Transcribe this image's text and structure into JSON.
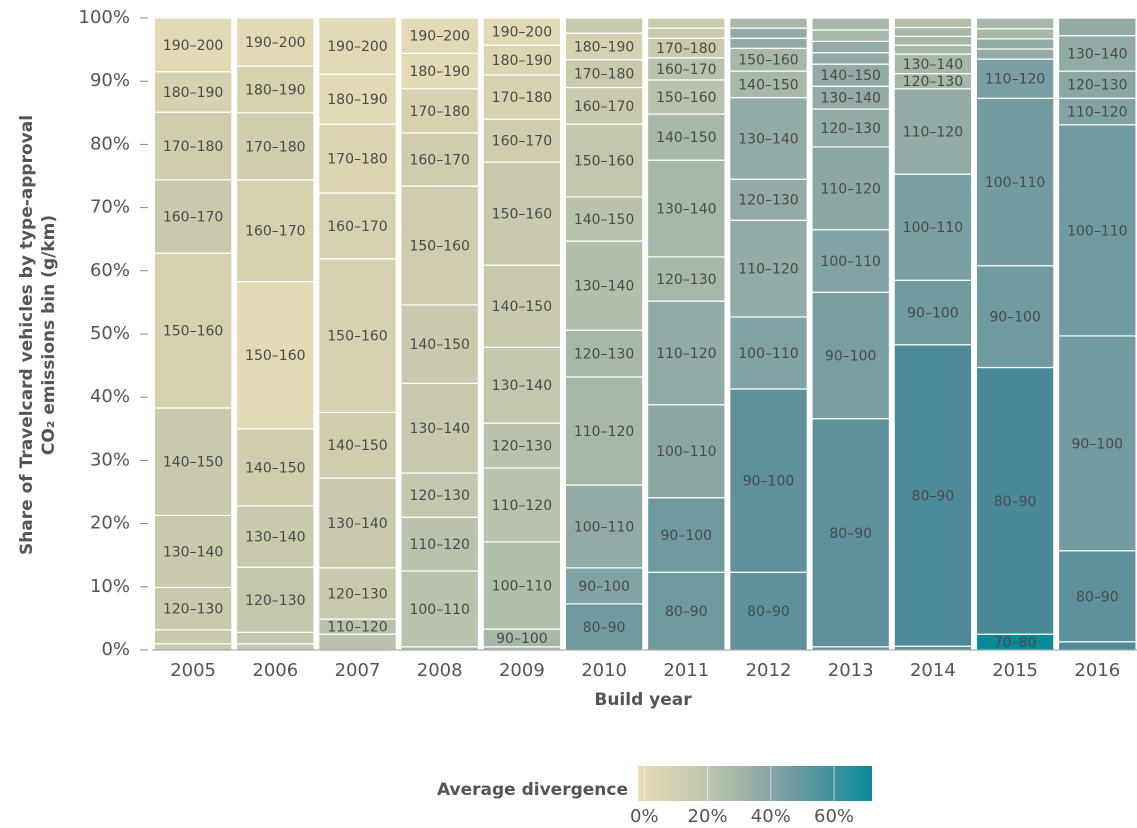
{
  "chart_data": {
    "type": "stacked-bar-100",
    "ylabel": [
      "Share of Travelcard vehicles by type-approval",
      "CO₂ emissions bin (g/km)"
    ],
    "xlabel": "Build year",
    "categories": [
      "2005",
      "2006",
      "2007",
      "2008",
      "2009",
      "2010",
      "2011",
      "2012",
      "2013",
      "2014",
      "2015",
      "2016"
    ],
    "ylim": [
      0,
      100
    ],
    "yticks": [
      {
        "value": 0,
        "label": "0%"
      },
      {
        "value": 10,
        "label": "10%"
      },
      {
        "value": 20,
        "label": "20%"
      },
      {
        "value": 30,
        "label": "30%"
      },
      {
        "value": 40,
        "label": "40%"
      },
      {
        "value": 50,
        "label": "50%"
      },
      {
        "value": 60,
        "label": "60%"
      },
      {
        "value": 70,
        "label": "70%"
      },
      {
        "value": 80,
        "label": "80%"
      },
      {
        "value": 90,
        "label": "90%"
      },
      {
        "value": 100,
        "label": "100%"
      }
    ],
    "stacks": [
      {
        "labels": [
          null,
          null,
          "120–130",
          "130–140",
          "140–150",
          "150–160",
          "160–170",
          "170–180",
          "180–190",
          "190–200"
        ],
        "values": [
          1.0,
          2.2,
          6.7,
          11.4,
          17.0,
          24.5,
          11.6,
          10.7,
          6.4,
          8.5
        ],
        "colors": [
          "#c9caad",
          "#c9caad",
          "#c9caad",
          "#c9caad",
          "#c9caad",
          "#d6d2b0",
          "#c9caad",
          "#cfcdae",
          "#d6d2b0",
          "#e2d9b5"
        ]
      },
      {
        "labels": [
          null,
          null,
          "120–130",
          "130–140",
          "140–150",
          "150–160",
          "160–170",
          "170–180",
          "180–190",
          "190–200"
        ],
        "values": [
          1.0,
          1.8,
          10.3,
          9.7,
          12.2,
          23.3,
          16.1,
          10.6,
          7.4,
          7.6
        ],
        "colors": [
          "#c4c7ad",
          "#c4c7ad",
          "#c4c7ad",
          "#c9caad",
          "#cfcdae",
          "#e2d9b5",
          "#d6d2b0",
          "#cfcdae",
          "#d6d2b0",
          "#e2d9b5"
        ]
      },
      {
        "labels": [
          null,
          "110–120",
          "120–130",
          "130–140",
          "140–150",
          "150–160",
          "160–170",
          "170–180",
          "180–190",
          "190–200"
        ],
        "values": [
          2.5,
          2.4,
          8.1,
          14.2,
          10.4,
          24.3,
          10.4,
          10.9,
          7.9,
          9.0
        ],
        "colors": [
          "#b9c2ac",
          "#b9c2ac",
          "#c9caad",
          "#c9caad",
          "#cfcdae",
          "#d6d2b0",
          "#d6d2b0",
          "#dcd5b2",
          "#e2d9b5",
          "#e2d9b5"
        ]
      },
      {
        "labels": [
          null,
          "100–110",
          "110–120",
          "120–130",
          "130–140",
          "140–150",
          "150–160",
          "160–170",
          "170–180",
          "180–190",
          "190–200"
        ],
        "values": [
          0.5,
          12.0,
          8.5,
          7.0,
          14.2,
          12.4,
          18.8,
          8.4,
          7.0,
          5.6,
          5.6
        ],
        "colors": [
          "#a7b8a9",
          "#b9c2ac",
          "#b9c2ac",
          "#c4c7ad",
          "#c9caad",
          "#c9caad",
          "#cfcdae",
          "#cfcdae",
          "#d6d2b0",
          "#e2d9b5",
          "#e2d9b5"
        ]
      },
      {
        "labels": [
          null,
          "90–100",
          "100–110",
          "110–120",
          "120–130",
          "130–140",
          "140–150",
          "150–160",
          "160–170",
          "170–180",
          "180–190",
          "190–200"
        ],
        "values": [
          0.5,
          2.8,
          13.8,
          11.7,
          7.1,
          12.0,
          13.0,
          16.3,
          6.8,
          7.0,
          4.7,
          4.3
        ],
        "colors": [
          "#a7b8a9",
          "#a7b8a9",
          "#b2bfab",
          "#b9c2ac",
          "#b9c2ac",
          "#c4c7ad",
          "#c9caad",
          "#c9caad",
          "#cfcdae",
          "#d6d2b0",
          "#dcd5b2",
          "#e2d9b5"
        ]
      },
      {
        "labels": [
          "80–90",
          "90–100",
          "100–110",
          "110–120",
          "120–130",
          "130–140",
          "140–150",
          "150–160",
          "160–170",
          "170–180",
          "180–190",
          null
        ],
        "values": [
          7.3,
          5.7,
          13.1,
          17.1,
          7.4,
          14.1,
          7.0,
          11.5,
          5.8,
          4.4,
          4.2,
          2.4
        ],
        "colors": [
          "#6f9aa0",
          "#82a3a3",
          "#93aba6",
          "#a7b8a9",
          "#a7b8a9",
          "#b2bfab",
          "#b9c2ac",
          "#c4c7ad",
          "#c9caad",
          "#c9caad",
          "#d6d2b0",
          "#c9caad"
        ]
      },
      {
        "labels": [
          "80–90",
          "90–100",
          "100–110",
          "110–120",
          "120–130",
          "130–140",
          "140–150",
          "150–160",
          "160–170",
          "170–180",
          null,
          null
        ],
        "values": [
          12.3,
          11.8,
          14.7,
          16.4,
          7.0,
          15.3,
          7.3,
          5.4,
          3.5,
          3.1,
          1.6,
          1.6
        ],
        "colors": [
          "#6f9aa0",
          "#6f9aa0",
          "#8aa7a4",
          "#93aba6",
          "#a7b8a9",
          "#a7b8a9",
          "#a7b8a9",
          "#b9c2ac",
          "#b9c2ac",
          "#c9caad",
          "#c9caad",
          "#c9caad"
        ]
      },
      {
        "labels": [
          "80–90",
          "90–100",
          "100–110",
          "110–120",
          "120–130",
          "130–140",
          "140–150",
          "150–160",
          null,
          null,
          null
        ],
        "values": [
          12.3,
          29.0,
          11.4,
          15.3,
          6.5,
          12.9,
          4.2,
          3.6,
          1.6,
          1.6,
          1.6
        ],
        "colors": [
          "#5e919c",
          "#5e919c",
          "#82a3a3",
          "#93aba6",
          "#93aba6",
          "#93aba6",
          "#a7b8a9",
          "#a7b8a9",
          "#93aba6",
          "#93aba6",
          "#a7b8a9"
        ]
      },
      {
        "labels": [
          null,
          "80–90",
          "90–100",
          "100–110",
          "110–120",
          "120–130",
          "130–140",
          "140–150",
          null,
          null,
          null,
          null
        ],
        "values": [
          0.5,
          36.1,
          20.0,
          9.9,
          13.1,
          6.0,
          3.6,
          3.5,
          1.8,
          1.8,
          1.8,
          1.9
        ],
        "colors": [
          "#5e919c",
          "#5e919c",
          "#7a9fa2",
          "#82a3a3",
          "#8aa7a4",
          "#93aba6",
          "#93aba6",
          "#93aba6",
          "#93aba6",
          "#93aba6",
          "#a7b8a9",
          "#a7b8a9"
        ]
      },
      {
        "labels": [
          null,
          "80–90",
          "90–100",
          "100–110",
          "110–120",
          "120–130",
          "130–140",
          null,
          null,
          null,
          null
        ],
        "values": [
          0.6,
          47.7,
          10.2,
          16.8,
          13.5,
          2.4,
          3.1,
          1.4,
          1.4,
          1.4,
          1.5
        ],
        "colors": [
          "#5e919c",
          "#4d8b9a",
          "#6f9aa0",
          "#7a9fa2",
          "#93aba6",
          "#a7b8a9",
          "#a7b8a9",
          "#a7b8a9",
          "#a7b8a9",
          "#a7b8a9",
          "#b2bfab"
        ]
      },
      {
        "labels": [
          "70–80",
          "80–90",
          "90–100",
          "100–110",
          "110–120",
          null,
          null,
          null,
          null
        ],
        "values": [
          2.5,
          42.2,
          16.1,
          26.5,
          6.2,
          1.6,
          1.6,
          1.6,
          1.7
        ],
        "colors": [
          "#0b8a9a",
          "#4a8a98",
          "#6f9aa0",
          "#739ca1",
          "#7a9fa2",
          "#93aba6",
          "#93aba6",
          "#a7b8a9",
          "#a7b8a9"
        ]
      },
      {
        "labels": [
          null,
          "80–90",
          "90–100",
          "100–110",
          "110–120",
          "120–130",
          "130–140",
          null
        ],
        "values": [
          1.3,
          14.4,
          34.0,
          33.4,
          4.2,
          4.3,
          5.6,
          2.8
        ],
        "colors": [
          "#4d8b9a",
          "#5e919c",
          "#739ca1",
          "#6f9aa0",
          "#82a3a3",
          "#8aa7a4",
          "#93aba6",
          "#93aba6"
        ]
      }
    ],
    "colorbar": {
      "label": "Average divergence",
      "lim": [
        -2,
        72
      ],
      "ticks": [
        {
          "value": 0,
          "label": "0%"
        },
        {
          "value": 20,
          "label": "20%"
        },
        {
          "value": 40,
          "label": "40%"
        },
        {
          "value": 60,
          "label": "60%"
        }
      ],
      "colors": [
        "#e8dcb5",
        "#b9c2ac",
        "#6f9aa0",
        "#0b8a9a"
      ]
    }
  }
}
